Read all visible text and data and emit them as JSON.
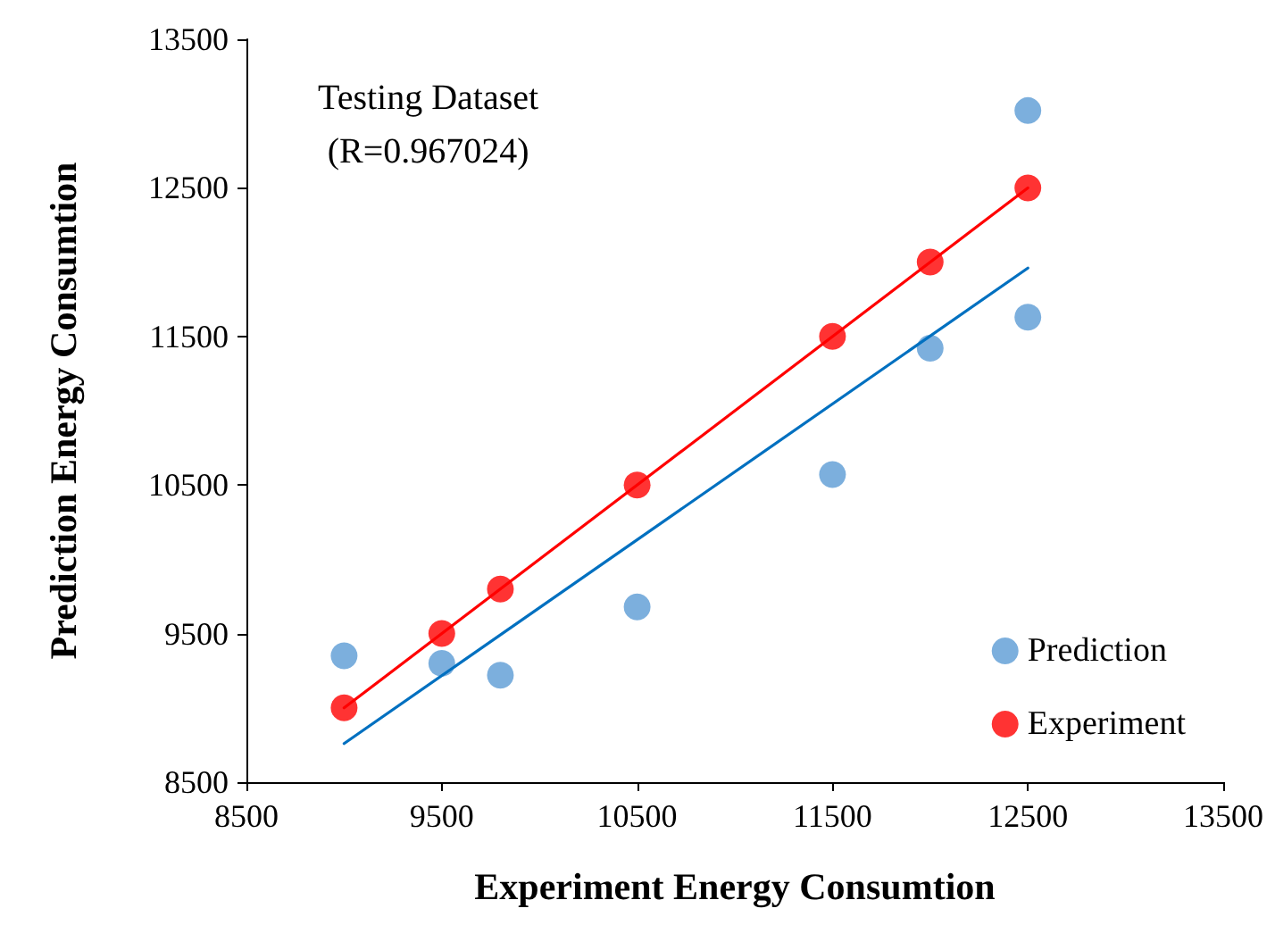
{
  "chart_data": {
    "type": "scatter",
    "xlabel": "Experiment Energy Consumtion",
    "ylabel": "Prediction Energy Consumtion",
    "annotations": [
      "Testing Dataset\n(R=0.967024)"
    ],
    "xlim": [
      8500,
      13500
    ],
    "xticks": [
      8500,
      9500,
      10500,
      11500,
      12500,
      13500
    ],
    "ylim": [
      8500,
      13500
    ],
    "yticks": [
      8500,
      9500,
      10500,
      11500,
      12500,
      13500
    ],
    "grid": false,
    "legend": "bottom right",
    "marker": "circle",
    "series": [
      {
        "name": "Prediction",
        "color": "#5b9bd5",
        "x": [
          9000,
          9500,
          9800,
          10500,
          11500,
          12000,
          12500,
          12500
        ],
        "values": [
          9350,
          9300,
          9220,
          9680,
          10570,
          11420,
          11630,
          13020
        ]
      },
      {
        "name": "Experiment",
        "color": "#ff0000",
        "x": [
          9000,
          9500,
          9800,
          10500,
          11500,
          12000,
          12500
        ],
        "values": [
          9000,
          9500,
          9800,
          10500,
          11500,
          12000,
          12500
        ]
      },
      {
        "type": "line",
        "color": "#ff0000",
        "marker": "none",
        "line_style": "solid",
        "x": [
          9000,
          12500
        ],
        "values": [
          9000,
          12500
        ]
      },
      {
        "type": "line",
        "color": "#0070c0",
        "marker": "none",
        "line_style": "solid",
        "x": [
          9000,
          12500
        ],
        "values": [
          8760,
          11960
        ]
      }
    ]
  }
}
